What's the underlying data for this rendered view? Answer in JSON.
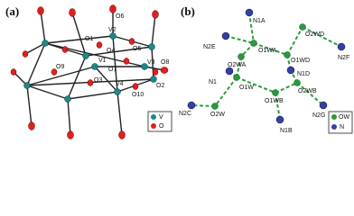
{
  "panel_a": {
    "label": "(a)",
    "atom_labels": [
      "O6",
      "O1",
      "V2",
      "O4",
      "O5",
      "O9",
      "V1",
      "O7",
      "V3",
      "O8",
      "O3",
      "V4",
      "O2",
      "O10"
    ],
    "legend": [
      "V",
      "O"
    ]
  },
  "panel_b": {
    "label": "(b)",
    "atom_labels": [
      "N1A",
      "O2WD",
      "N2E",
      "O1WA",
      "N2F",
      "O2WA",
      "O1WD",
      "N1D",
      "N1",
      "O1W",
      "O2WB",
      "O1WB",
      "N2C",
      "O2W",
      "N2G",
      "N1B"
    ],
    "legend": [
      "OW",
      "N"
    ]
  }
}
